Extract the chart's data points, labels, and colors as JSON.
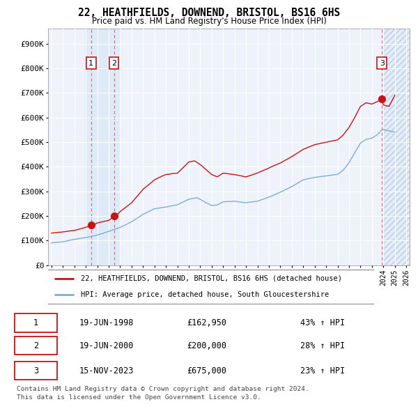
{
  "title": "22, HEATHFIELDS, DOWNEND, BRISTOL, BS16 6HS",
  "subtitle": "Price paid vs. HM Land Registry's House Price Index (HPI)",
  "ylabel_ticks": [
    "£0",
    "£100K",
    "£200K",
    "£300K",
    "£400K",
    "£500K",
    "£600K",
    "£700K",
    "£800K",
    "£900K"
  ],
  "ytick_values": [
    0,
    100000,
    200000,
    300000,
    400000,
    500000,
    600000,
    700000,
    800000,
    900000
  ],
  "ylim": [
    0,
    960000
  ],
  "xlim_start": 1994.7,
  "xlim_end": 2026.3,
  "hpi_color": "#7bafd4",
  "price_color": "#cc1111",
  "marker_color": "#cc1111",
  "sale_points": [
    {
      "date_num": 1998.46,
      "price": 162950,
      "label": "1"
    },
    {
      "date_num": 2000.46,
      "price": 200000,
      "label": "2"
    },
    {
      "date_num": 2023.88,
      "price": 675000,
      "label": "3"
    }
  ],
  "transactions": [
    {
      "num": "1",
      "date": "19-JUN-1998",
      "price": "£162,950",
      "hpi": "43% ↑ HPI"
    },
    {
      "num": "2",
      "date": "19-JUN-2000",
      "price": "£200,000",
      "hpi": "28% ↑ HPI"
    },
    {
      "num": "3",
      "date": "15-NOV-2023",
      "price": "£675,000",
      "hpi": "23% ↑ HPI"
    }
  ],
  "legend_entries": [
    "22, HEATHFIELDS, DOWNEND, BRISTOL, BS16 6HS (detached house)",
    "HPI: Average price, detached house, South Gloucestershire"
  ],
  "footer": "Contains HM Land Registry data © Crown copyright and database right 2024.\nThis data is licensed under the Open Government Licence v3.0.",
  "bg_color": "#ffffff",
  "plot_bg_color": "#eef2fb",
  "grid_color": "#ffffff",
  "shade_blue": "#d0e4f5",
  "hatch_color": "#c8d8e8"
}
